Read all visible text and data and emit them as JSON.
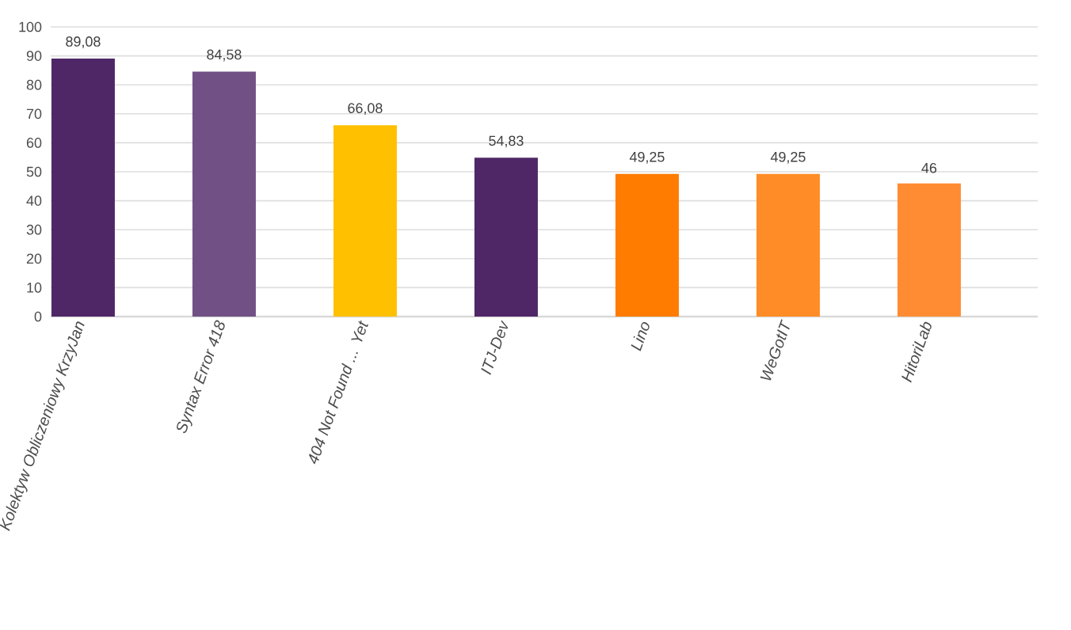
{
  "chart_data": {
    "type": "bar",
    "categories": [
      "Kolektyw Obliczeniowy KrzyJan",
      "Syntax Error 418",
      "404 Not Found ... Yet",
      "ITJ-Dev",
      "Lino",
      "WeGotIT",
      "HitoriLab"
    ],
    "values": [
      89.08,
      84.58,
      66.08,
      54.83,
      49.25,
      49.25,
      46
    ],
    "value_labels": [
      "89,08",
      "84,58",
      "66,08",
      "54,83",
      "49,25",
      "49,25",
      "46"
    ],
    "colors": [
      "#4f2767",
      "#715185",
      "#ffc000",
      "#4f2767",
      "#ff7c00",
      "#ff8c26",
      "#ff8c33"
    ],
    "ylim": [
      0,
      100
    ],
    "yticks": [
      0,
      10,
      20,
      30,
      40,
      50,
      60,
      70,
      80,
      90,
      100
    ],
    "grid": "y"
  }
}
